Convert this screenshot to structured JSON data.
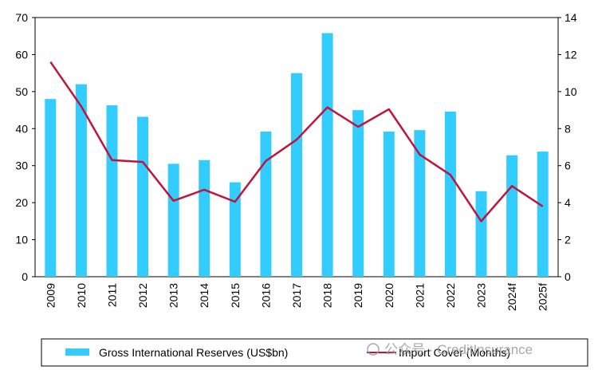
{
  "chart_data": {
    "type": "bar",
    "categories": [
      "2009",
      "2010",
      "2011",
      "2012",
      "2013",
      "2014",
      "2015",
      "2016",
      "2017",
      "2018",
      "2019",
      "2020",
      "2021",
      "2022",
      "2023",
      "2024f",
      "2025f"
    ],
    "series": [
      {
        "name": "Gross International  Reserves (US$bn)",
        "type": "bar",
        "axis": "left",
        "color": "#33ccff",
        "values": [
          48,
          52,
          46.3,
          43.2,
          30.5,
          31.5,
          25.5,
          39.2,
          55,
          65.8,
          45,
          39.2,
          39.6,
          44.6,
          23.1,
          32.8,
          33.8
        ]
      },
      {
        "name": "Import  Cover (Months)",
        "type": "line",
        "axis": "right",
        "color": "#c0143c",
        "values": [
          11.6,
          9.2,
          6.3,
          6.2,
          4.1,
          4.7,
          4.05,
          6.25,
          7.4,
          9.15,
          8.1,
          9.05,
          6.6,
          5.5,
          3.0,
          4.9,
          3.8
        ]
      }
    ],
    "ylim": [
      0,
      70
    ],
    "y2lim": [
      0,
      14
    ],
    "yticks": [
      "0",
      "10",
      "20",
      "30",
      "40",
      "50",
      "60",
      "70"
    ],
    "y2ticks": [
      "0",
      "2",
      "4",
      "6",
      "8",
      "10",
      "12",
      "14"
    ],
    "grid": false,
    "legend_position": "bottom"
  },
  "watermark": {
    "text": "公众号 · CreditInsurance"
  }
}
